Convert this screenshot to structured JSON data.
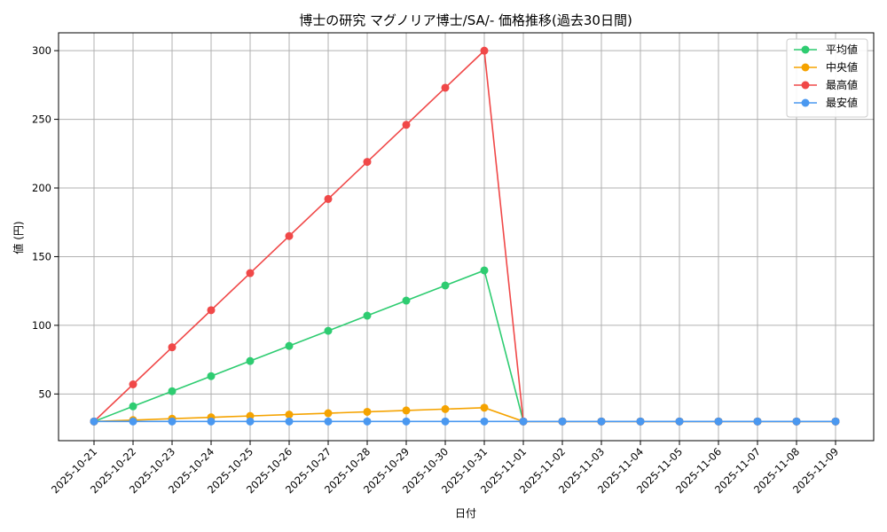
{
  "chart_data": {
    "type": "line",
    "title": "博士の研究 マグノリア博士/SA/- 価格推移(過去30日間)",
    "xlabel": "日付",
    "ylabel": "値 (円)",
    "categories": [
      "2025-10-21",
      "2025-10-22",
      "2025-10-23",
      "2025-10-24",
      "2025-10-25",
      "2025-10-26",
      "2025-10-27",
      "2025-10-28",
      "2025-10-29",
      "2025-10-30",
      "2025-10-31",
      "2025-11-01",
      "2025-11-02",
      "2025-11-03",
      "2025-11-04",
      "2025-11-05",
      "2025-11-06",
      "2025-11-07",
      "2025-11-08",
      "2025-11-09"
    ],
    "ylim": [
      16,
      313
    ],
    "yticks": [
      50,
      100,
      150,
      200,
      250,
      300
    ],
    "grid": true,
    "legend_position": "top-right",
    "series": [
      {
        "name": "平均値",
        "color": "#2ecc71",
        "values": [
          30,
          41,
          52,
          63,
          74,
          85,
          96,
          107,
          118,
          129,
          140,
          30,
          30,
          30,
          30,
          30,
          30,
          30,
          30,
          30
        ]
      },
      {
        "name": "中央値",
        "color": "#f5a300",
        "values": [
          30,
          31,
          32,
          33,
          34,
          35,
          36,
          37,
          38,
          39,
          40,
          30,
          30,
          30,
          30,
          30,
          30,
          30,
          30,
          30
        ]
      },
      {
        "name": "最高値",
        "color": "#f04848",
        "values": [
          30,
          57,
          84,
          111,
          138,
          165,
          192,
          219,
          246,
          273,
          300,
          30,
          30,
          30,
          30,
          30,
          30,
          30,
          30,
          30
        ]
      },
      {
        "name": "最安値",
        "color": "#4a98f0",
        "values": [
          30,
          30,
          30,
          30,
          30,
          30,
          30,
          30,
          30,
          30,
          30,
          30,
          30,
          30,
          30,
          30,
          30,
          30,
          30,
          30
        ]
      }
    ]
  }
}
